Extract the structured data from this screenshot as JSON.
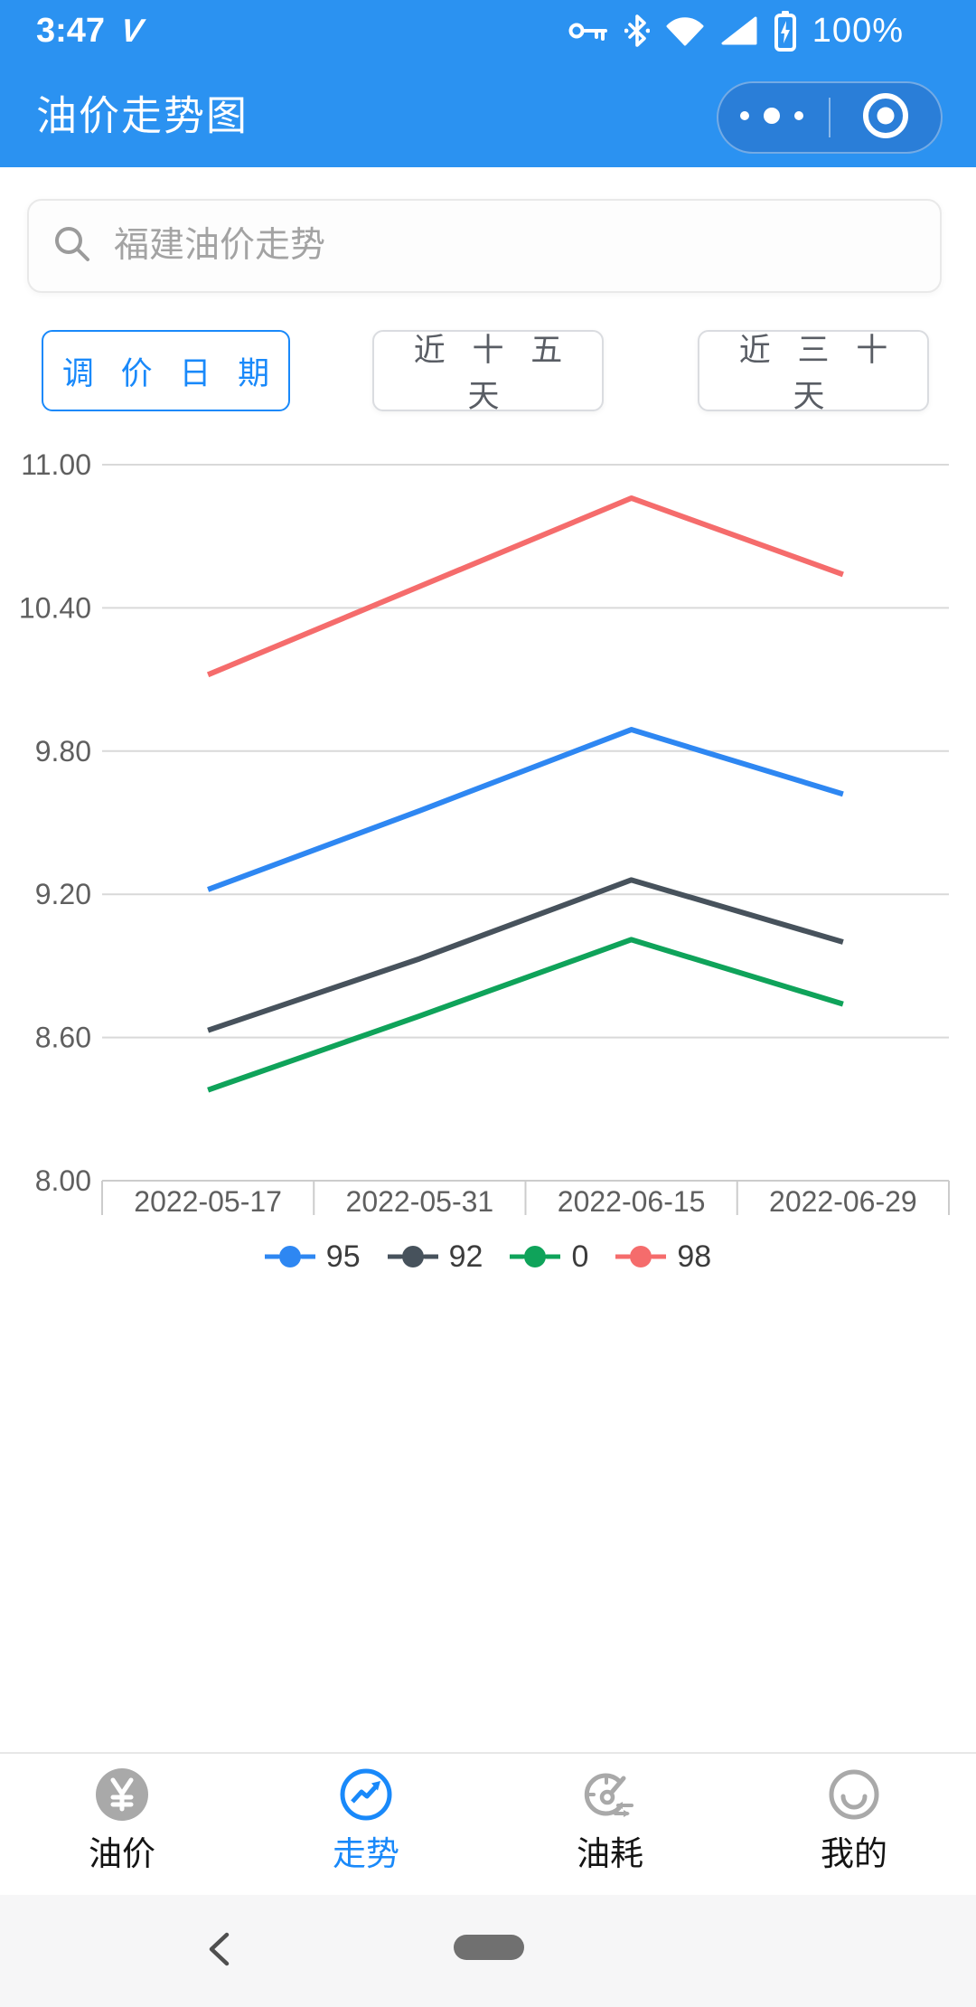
{
  "status_bar": {
    "time": "3:47",
    "network_label": "V",
    "battery_percent": "100%",
    "icons": [
      "volte-v-icon",
      "key-icon",
      "bluetooth-icon",
      "wifi-icon",
      "signal-icon",
      "battery-charging-icon"
    ]
  },
  "header": {
    "title": "油价走势图",
    "capsule_icons": [
      "more-dots-icon",
      "home-circle-icon"
    ]
  },
  "search": {
    "placeholder": "福建油价走势",
    "icon": "search-icon"
  },
  "filters": [
    {
      "label": "调 价 日 期",
      "active": true
    },
    {
      "label": "近 十 五 天",
      "active": false
    },
    {
      "label": "近 三 十 天",
      "active": false
    }
  ],
  "chart_data": {
    "type": "line",
    "title": "",
    "xlabel": "",
    "ylabel": "",
    "categories": [
      "2022-05-17",
      "2022-05-31",
      "2022-06-15",
      "2022-06-29"
    ],
    "series": [
      {
        "name": "95",
        "color": "#2E87F2",
        "values": [
          9.22,
          9.55,
          9.89,
          9.62
        ]
      },
      {
        "name": "92",
        "color": "#47525C",
        "values": [
          8.63,
          8.93,
          9.26,
          9.0
        ]
      },
      {
        "name": "0",
        "color": "#0FA35A",
        "values": [
          8.38,
          8.69,
          9.01,
          8.74
        ]
      },
      {
        "name": "98",
        "color": "#F56C6C",
        "values": [
          10.12,
          10.49,
          10.86,
          10.54
        ]
      }
    ],
    "ylim": [
      8.0,
      11.0
    ],
    "yticks": [
      "11.00",
      "10.40",
      "9.80",
      "9.20",
      "8.60",
      "8.00"
    ],
    "grid": true,
    "legend_position": "bottom"
  },
  "tab_bar": {
    "active_color": "#1989FA",
    "items": [
      {
        "label": "油价",
        "icon": "yen-circle-icon",
        "active": false
      },
      {
        "label": "走势",
        "icon": "trend-icon",
        "active": true
      },
      {
        "label": "油耗",
        "icon": "gauge-icon",
        "active": false
      },
      {
        "label": "我的",
        "icon": "profile-smiley-icon",
        "active": false
      }
    ]
  },
  "system_nav": {
    "icons": [
      "back-chevron-icon",
      "home-pill"
    ]
  },
  "colors": {
    "header_bg": "#2B92F1",
    "capsule_bg": "#2A7ED8",
    "accent": "#1989FA",
    "gridline": "#d9d9d9",
    "axis_text": "#5f5f5f"
  }
}
